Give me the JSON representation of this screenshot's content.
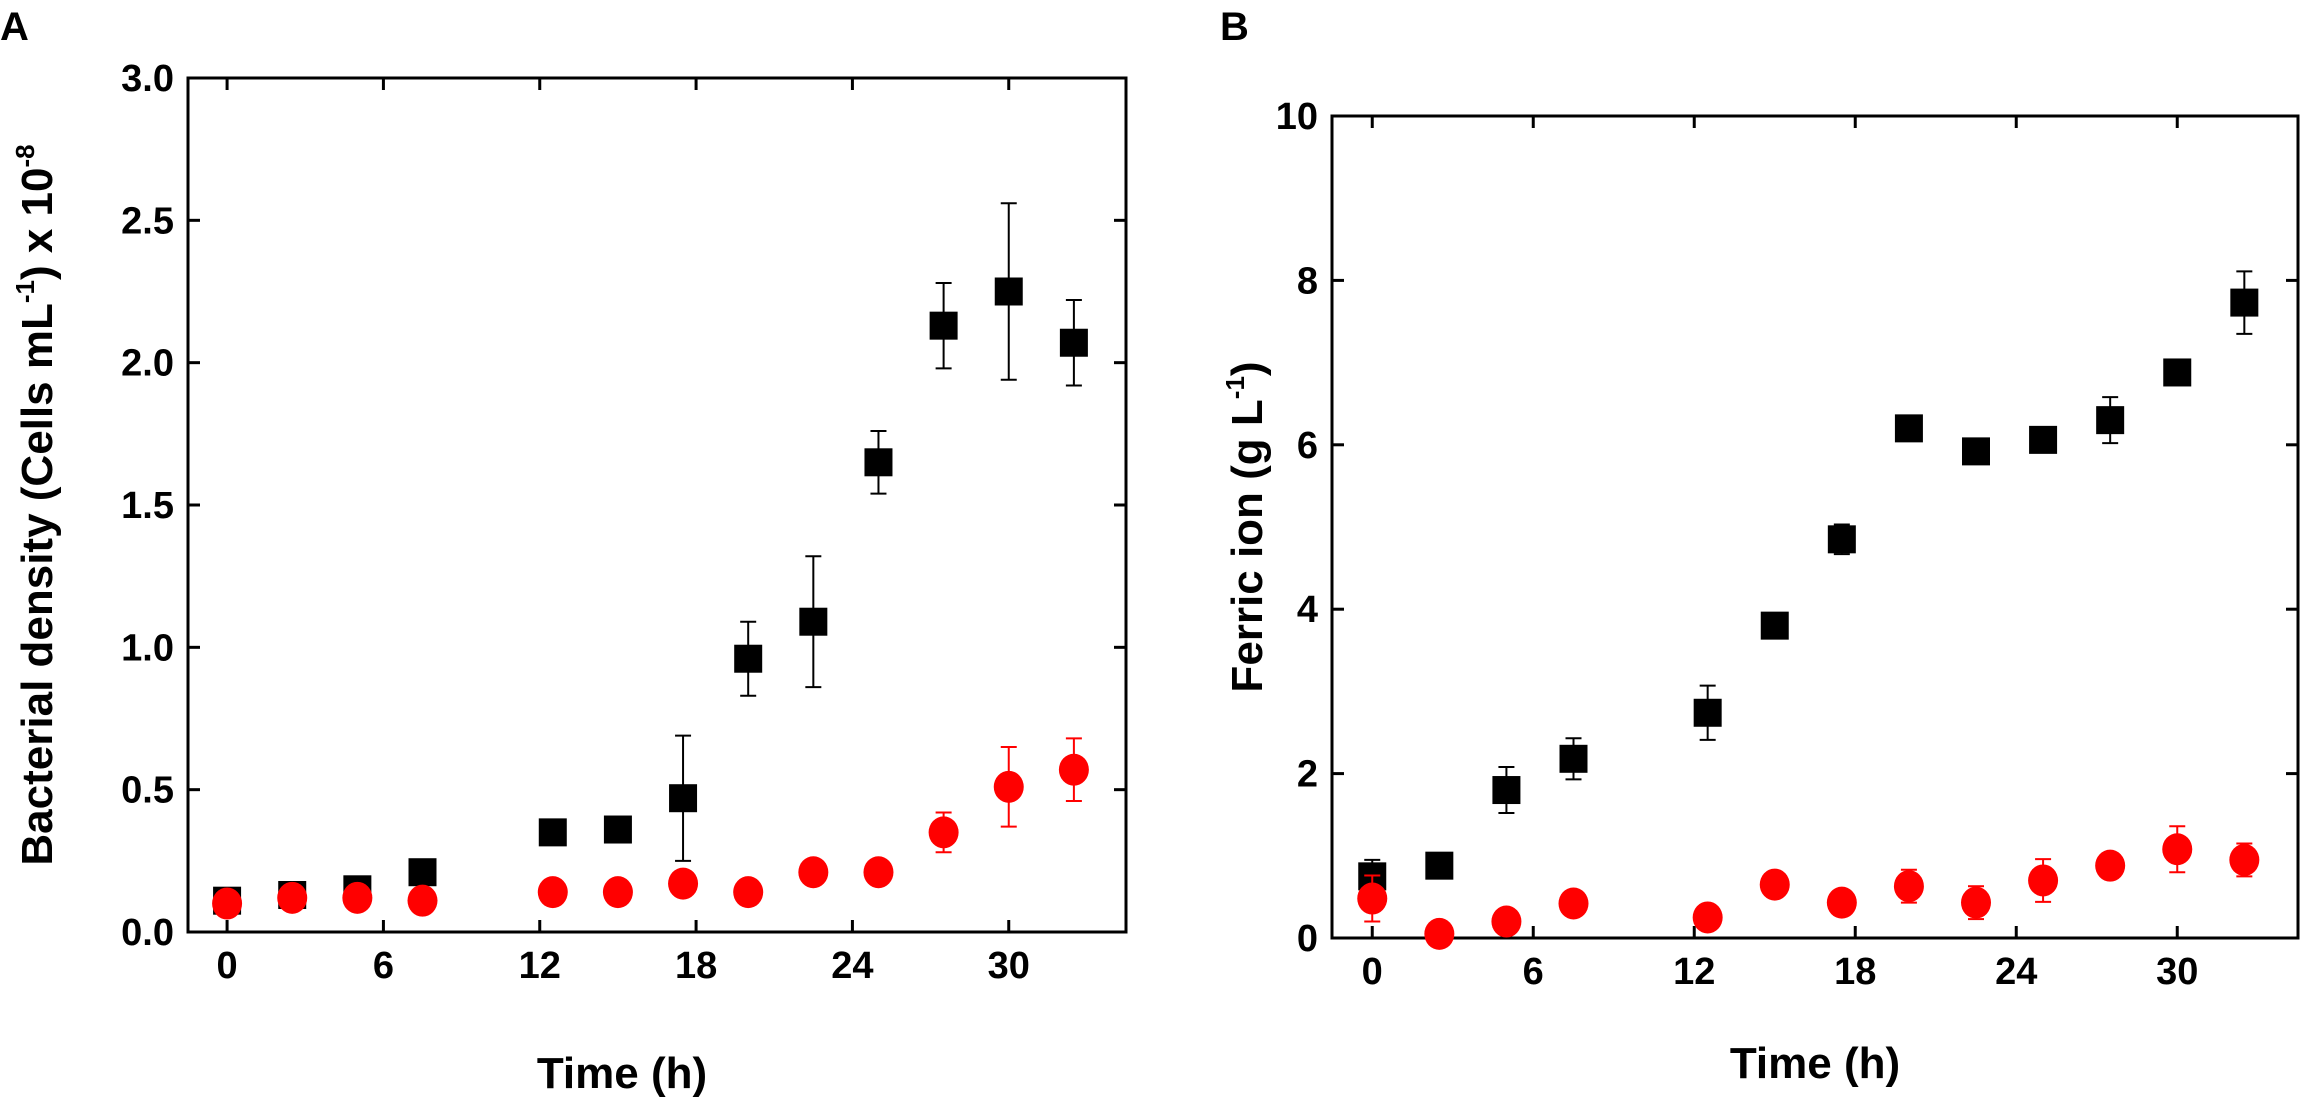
{
  "chart_data": [
    {
      "panel": "A",
      "type": "scatter",
      "xlabel": "Time (h)",
      "ylabel": {
        "main": "Bacterial density (Cells mL",
        "sup1": "-1",
        "mid": ") x 10",
        "sup2": "-8"
      },
      "xlim": [
        -1.5,
        34.5
      ],
      "ylim": [
        0,
        3.0
      ],
      "xticks": [
        0,
        6,
        12,
        18,
        24,
        30
      ],
      "xtick_labels": [
        "0",
        "6",
        "12",
        "18",
        "24",
        "30"
      ],
      "yticks": [
        0,
        0.5,
        1.0,
        1.5,
        2.0,
        2.5,
        3.0
      ],
      "ytick_labels": [
        "0.0",
        "0.5",
        "1.0",
        "1.5",
        "2.0",
        "2.5",
        "3.0"
      ],
      "series": [
        {
          "name": "squares",
          "marker": "square",
          "color": "#000000",
          "x": [
            0,
            2.5,
            5,
            7.5,
            12.5,
            15,
            17.5,
            20,
            22.5,
            25,
            27.5,
            30,
            32.5
          ],
          "y": [
            0.11,
            0.13,
            0.15,
            0.21,
            0.35,
            0.36,
            0.47,
            0.96,
            1.09,
            1.65,
            2.13,
            2.25,
            2.07
          ],
          "err": [
            0.02,
            0.02,
            0.03,
            0.04,
            0.03,
            0.03,
            0.22,
            0.13,
            0.23,
            0.11,
            0.15,
            0.31,
            0.15
          ]
        },
        {
          "name": "circles",
          "marker": "circle",
          "color": "#ff0000",
          "x": [
            0,
            2.5,
            5,
            7.5,
            12.5,
            15,
            17.5,
            20,
            22.5,
            25,
            27.5,
            30,
            32.5
          ],
          "y": [
            0.1,
            0.12,
            0.12,
            0.11,
            0.14,
            0.14,
            0.17,
            0.14,
            0.21,
            0.21,
            0.35,
            0.51,
            0.57
          ],
          "err": [
            0.02,
            0.02,
            0.02,
            0.02,
            0.02,
            0.02,
            0.03,
            0.02,
            0.03,
            0.03,
            0.07,
            0.14,
            0.11
          ]
        }
      ]
    },
    {
      "panel": "B",
      "type": "scatter",
      "xlabel": "Time (h)",
      "ylabel": {
        "main": "Ferric ion (g L",
        "sup1": "-1",
        "mid": ")",
        "sup2": ""
      },
      "xlim": [
        -1.5,
        34.5
      ],
      "ylim": [
        0,
        10
      ],
      "xticks": [
        0,
        6,
        12,
        18,
        24,
        30
      ],
      "xtick_labels": [
        "0",
        "6",
        "12",
        "18",
        "24",
        "30"
      ],
      "yticks": [
        0,
        2,
        4,
        6,
        8,
        10
      ],
      "ytick_labels": [
        "0",
        "2",
        "4",
        "6",
        "8",
        "10"
      ],
      "series": [
        {
          "name": "squares",
          "marker": "square",
          "color": "#000000",
          "x": [
            0,
            2.5,
            5,
            7.5,
            12.5,
            15,
            17.5,
            20,
            22.5,
            25,
            27.5,
            30,
            32.5
          ],
          "y": [
            0.75,
            0.88,
            1.8,
            2.18,
            2.74,
            3.8,
            4.85,
            6.2,
            5.92,
            6.06,
            6.3,
            6.88,
            7.73
          ],
          "err": [
            0.2,
            0.1,
            0.28,
            0.25,
            0.33,
            0.1,
            0.18,
            0.1,
            0.1,
            0.1,
            0.28,
            0.1,
            0.38
          ]
        },
        {
          "name": "circles",
          "marker": "circle",
          "color": "#ff0000",
          "x": [
            0,
            2.5,
            5,
            7.5,
            12.5,
            15,
            17.5,
            20,
            22.5,
            25,
            27.5,
            30,
            32.5
          ],
          "y": [
            0.48,
            0.05,
            0.2,
            0.42,
            0.25,
            0.65,
            0.43,
            0.63,
            0.43,
            0.7,
            0.88,
            1.08,
            0.95
          ],
          "err": [
            0.28,
            0.15,
            0.1,
            0.1,
            0.1,
            0.1,
            0.1,
            0.2,
            0.2,
            0.26,
            0.1,
            0.28,
            0.2
          ]
        }
      ]
    }
  ]
}
